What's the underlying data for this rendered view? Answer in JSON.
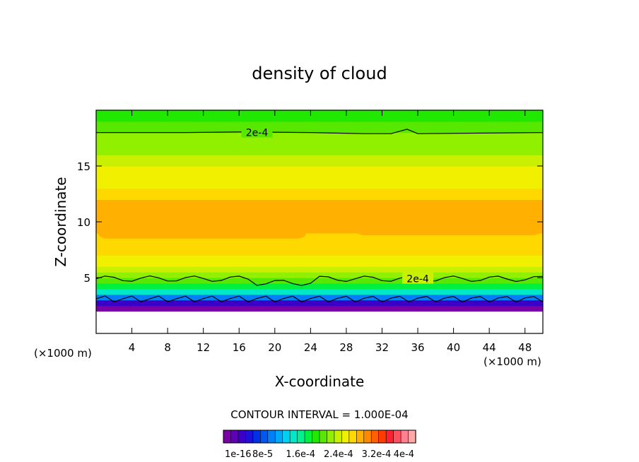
{
  "chart_data": {
    "type": "heatmap",
    "title": "density of cloud",
    "xlabel": "X-coordinate",
    "ylabel": "Z-coordinate",
    "x_unit_left": "(×1000 m)",
    "x_unit_right": "(×1000 m)",
    "xlim": [
      0,
      50
    ],
    "ylim": [
      0,
      20
    ],
    "x_ticks": [
      4,
      8,
      12,
      16,
      20,
      24,
      28,
      32,
      36,
      40,
      44,
      48
    ],
    "y_ticks": [
      5,
      10,
      15
    ],
    "contour_interval_text": "CONTOUR INTERVAL = 1.000E-04",
    "contour_labels": [
      {
        "text": "2e-4",
        "x": 18,
        "z": 18.0
      },
      {
        "text": "2e-4",
        "x": 36,
        "z": 4.9
      }
    ],
    "colorbar": {
      "colors": [
        "#7a00a8",
        "#5e00b8",
        "#3a00c8",
        "#1e10d8",
        "#0030e8",
        "#0058f0",
        "#0080f8",
        "#00a8f8",
        "#00d0f0",
        "#00e8c8",
        "#00f090",
        "#00f040",
        "#20e800",
        "#58e800",
        "#90f000",
        "#c8f000",
        "#f0f000",
        "#ffd800",
        "#ffb000",
        "#ff8800",
        "#ff6000",
        "#ff3c00",
        "#ff2030",
        "#ff5060",
        "#ff8090",
        "#ffa8a8"
      ],
      "tick_labels": [
        "1e-16",
        "8e-5",
        "1.6e-4",
        "2.4e-4",
        "3.2e-4",
        "4e-4"
      ]
    },
    "profile": {
      "z": [
        2.0,
        2.5,
        3.0,
        3.5,
        4.0,
        4.5,
        5.0,
        5.5,
        6.0,
        7.0,
        8.0,
        9.0,
        10.0,
        11.0,
        12.0,
        13.0,
        14.0,
        15.0,
        16.0,
        17.0,
        18.0,
        19.0,
        20.0
      ],
      "value_index": [
        0,
        2,
        6,
        9,
        11,
        13,
        14,
        15,
        16,
        17,
        17,
        18,
        18,
        18,
        17,
        16,
        16,
        15,
        14,
        14,
        13,
        12,
        12
      ]
    }
  }
}
